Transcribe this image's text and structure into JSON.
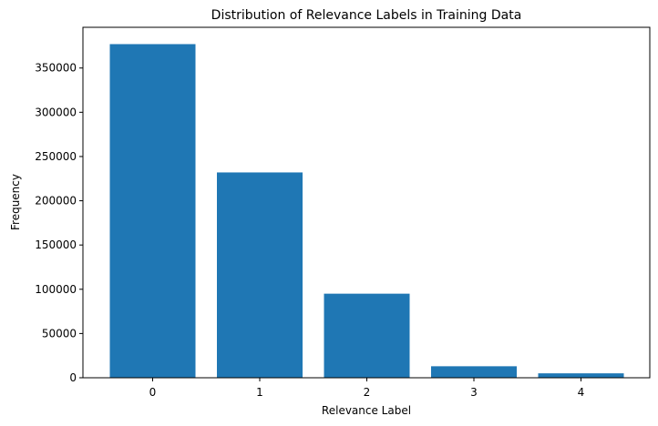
{
  "chart_data": {
    "type": "bar",
    "title": "Distribution of Relevance Labels in Training Data",
    "xlabel": "Relevance Label",
    "ylabel": "Frequency",
    "categories": [
      "0",
      "1",
      "2",
      "3",
      "4"
    ],
    "values": [
      377000,
      232000,
      95000,
      13000,
      5000
    ],
    "ylim": [
      0,
      396000
    ],
    "yticks": [
      0,
      50000,
      100000,
      150000,
      200000,
      250000,
      300000,
      350000
    ],
    "ytick_labels": [
      "0",
      "50000",
      "100000",
      "150000",
      "200000",
      "250000",
      "300000",
      "350000"
    ],
    "bar_color": "#1f77b4",
    "grid": false,
    "legend": "none"
  }
}
